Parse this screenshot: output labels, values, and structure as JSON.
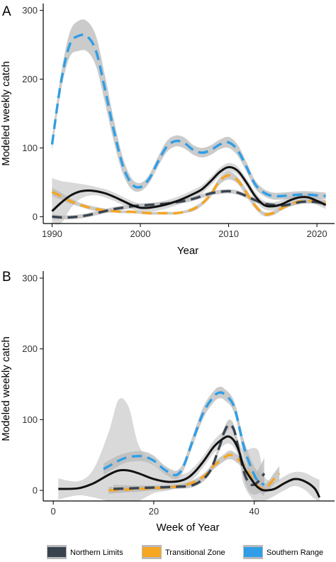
{
  "colors": {
    "Northern Limits": "#39434f",
    "Transitional Zone": "#f5a623",
    "Southern Range": "#2f9ee6",
    "overall": "#111111",
    "ribbon": "#b9b9b9"
  },
  "legend": {
    "placement": "bottom",
    "items": [
      {
        "label": "Northern Limits",
        "color": "#39434f"
      },
      {
        "label": "Transitional Zone",
        "color": "#f5a623"
      },
      {
        "label": "Southern Range",
        "color": "#2f9ee6"
      }
    ]
  },
  "chart_data": [
    {
      "panel": "A",
      "type": "line",
      "xlabel": "Year",
      "ylabel": "Modeled weekly catch",
      "xlim": [
        1989,
        2022
      ],
      "ylim": [
        -10,
        310
      ],
      "xticks": [
        1990,
        2000,
        2010,
        2020
      ],
      "yticks": [
        0,
        100,
        200,
        300
      ],
      "series": [
        {
          "name": "Southern Range",
          "style": "dashed",
          "points": [
            [
              1990,
              105
            ],
            [
              1991,
              195
            ],
            [
              1992,
              250
            ],
            [
              1993,
              263
            ],
            [
              1994,
              262
            ],
            [
              1995,
              240
            ],
            [
              1996,
              185
            ],
            [
              1997,
              125
            ],
            [
              1998,
              75
            ],
            [
              1999,
              48
            ],
            [
              2000,
              43
            ],
            [
              2001,
              55
            ],
            [
              2002,
              80
            ],
            [
              2003,
              102
            ],
            [
              2004,
              110
            ],
            [
              2005,
              107
            ],
            [
              2006,
              97
            ],
            [
              2007,
              93
            ],
            [
              2008,
              97
            ],
            [
              2009,
              105
            ],
            [
              2010,
              108
            ],
            [
              2011,
              97
            ],
            [
              2012,
              73
            ],
            [
              2013,
              47
            ],
            [
              2014,
              35
            ],
            [
              2015,
              30
            ],
            [
              2016,
              30
            ],
            [
              2017,
              31
            ],
            [
              2018,
              32
            ],
            [
              2019,
              32
            ],
            [
              2020,
              31
            ],
            [
              2021,
              30
            ]
          ],
          "band": [
            10,
            12,
            18,
            22,
            22,
            22,
            20,
            16,
            12,
            8,
            6,
            6,
            7,
            8,
            8,
            8,
            7,
            7,
            7,
            7,
            8,
            8,
            7,
            6,
            5,
            5,
            5,
            5,
            5,
            5,
            5,
            5
          ]
        },
        {
          "name": "Transitional Zone",
          "style": "dashed",
          "points": [
            [
              1990,
              36
            ],
            [
              1991,
              30
            ],
            [
              1992,
              23
            ],
            [
              1993,
              18
            ],
            [
              1994,
              14
            ],
            [
              1995,
              11
            ],
            [
              1996,
              9
            ],
            [
              1997,
              8
            ],
            [
              1998,
              7
            ],
            [
              1999,
              7
            ],
            [
              2000,
              6
            ],
            [
              2001,
              5
            ],
            [
              2002,
              5
            ],
            [
              2003,
              5
            ],
            [
              2004,
              5
            ],
            [
              2005,
              7
            ],
            [
              2006,
              11
            ],
            [
              2007,
              19
            ],
            [
              2008,
              33
            ],
            [
              2009,
              52
            ],
            [
              2010,
              60
            ],
            [
              2011,
              53
            ],
            [
              2012,
              35
            ],
            [
              2013,
              16
            ],
            [
              2014,
              4
            ],
            [
              2015,
              5
            ],
            [
              2016,
              12
            ],
            [
              2017,
              18
            ],
            [
              2018,
              22
            ],
            [
              2019,
              23
            ],
            [
              2020,
              22
            ],
            [
              2021,
              20
            ]
          ],
          "band": [
            6,
            5,
            4,
            3,
            3,
            3,
            3,
            2,
            2,
            2,
            2,
            2,
            2,
            2,
            2,
            2,
            3,
            3,
            4,
            5,
            6,
            5,
            5,
            4,
            3,
            3,
            3,
            3,
            3,
            3,
            3,
            4
          ]
        },
        {
          "name": "Northern Limits",
          "style": "dashed",
          "points": [
            [
              1990,
              0
            ],
            [
              1991,
              -1
            ],
            [
              1992,
              -1
            ],
            [
              1993,
              0
            ],
            [
              1994,
              2
            ],
            [
              1995,
              5
            ],
            [
              1996,
              8
            ],
            [
              1997,
              11
            ],
            [
              1998,
              13
            ],
            [
              1999,
              15
            ],
            [
              2000,
              16
            ],
            [
              2001,
              17
            ],
            [
              2002,
              18
            ],
            [
              2003,
              19
            ],
            [
              2004,
              21
            ],
            [
              2005,
              23
            ],
            [
              2006,
              26
            ],
            [
              2007,
              30
            ],
            [
              2008,
              34
            ],
            [
              2009,
              36
            ],
            [
              2010,
              37
            ],
            [
              2011,
              35
            ],
            [
              2012,
              30
            ],
            [
              2013,
              24
            ],
            [
              2014,
              19
            ],
            [
              2015,
              17
            ],
            [
              2016,
              16
            ],
            [
              2017,
              18
            ],
            [
              2018,
              21
            ],
            [
              2019,
              22
            ],
            [
              2020,
              21
            ],
            [
              2021,
              19
            ]
          ],
          "band": [
            4,
            3,
            3,
            3,
            3,
            3,
            3,
            3,
            3,
            3,
            3,
            3,
            3,
            3,
            3,
            3,
            3,
            3,
            3,
            3,
            3,
            3,
            3,
            3,
            3,
            3,
            3,
            3,
            3,
            3,
            3,
            4
          ]
        },
        {
          "name": "",
          "style": "solid",
          "points": [
            [
              1990,
              8
            ],
            [
              1991,
              20
            ],
            [
              1992,
              30
            ],
            [
              1993,
              36
            ],
            [
              1994,
              38
            ],
            [
              1995,
              37
            ],
            [
              1996,
              34
            ],
            [
              1997,
              29
            ],
            [
              1998,
              23
            ],
            [
              1999,
              17
            ],
            [
              2000,
              13
            ],
            [
              2001,
              13
            ],
            [
              2002,
              15
            ],
            [
              2003,
              18
            ],
            [
              2004,
              22
            ],
            [
              2005,
              27
            ],
            [
              2006,
              33
            ],
            [
              2007,
              40
            ],
            [
              2008,
              52
            ],
            [
              2009,
              65
            ],
            [
              2010,
              72
            ],
            [
              2011,
              67
            ],
            [
              2012,
              50
            ],
            [
              2013,
              30
            ],
            [
              2014,
              17
            ],
            [
              2015,
              15
            ],
            [
              2016,
              18
            ],
            [
              2017,
              24
            ],
            [
              2018,
              28
            ],
            [
              2019,
              28
            ],
            [
              2020,
              23
            ],
            [
              2021,
              17
            ]
          ],
          "band": [
            48,
            32,
            20,
            12,
            8,
            6,
            6,
            6,
            6,
            6,
            6,
            6,
            6,
            6,
            6,
            6,
            6,
            6,
            6,
            6,
            6,
            6,
            6,
            6,
            6,
            6,
            6,
            6,
            6,
            6,
            6,
            6
          ]
        }
      ]
    },
    {
      "panel": "B",
      "type": "line",
      "xlabel": "Week of Year",
      "ylabel": "Modeled weekly catch",
      "xlim": [
        -2,
        56
      ],
      "ylim": [
        -15,
        310
      ],
      "xticks": [
        0,
        20,
        40
      ],
      "yticks": [
        0,
        100,
        200,
        300
      ],
      "series": [
        {
          "name": "Southern Range",
          "style": "dashed",
          "points": [
            [
              10,
              30
            ],
            [
              12,
              38
            ],
            [
              14,
              45
            ],
            [
              16,
              48
            ],
            [
              18,
              48
            ],
            [
              20,
              42
            ],
            [
              22,
              30
            ],
            [
              24,
              22
            ],
            [
              25,
              24
            ],
            [
              26,
              35
            ],
            [
              28,
              75
            ],
            [
              30,
              112
            ],
            [
              32,
              133
            ],
            [
              33,
              138
            ],
            [
              34,
              136
            ],
            [
              36,
              118
            ],
            [
              38,
              60
            ],
            [
              40,
              22
            ],
            [
              41,
              12
            ],
            [
              42,
              8
            ]
          ],
          "band": [
            8,
            8,
            7,
            7,
            7,
            7,
            6,
            6,
            6,
            6,
            7,
            8,
            8,
            8,
            8,
            8,
            10,
            12,
            14,
            16
          ]
        },
        {
          "name": "Transitional Zone",
          "style": "dashed",
          "points": [
            [
              11,
              0
            ],
            [
              14,
              1
            ],
            [
              17,
              2
            ],
            [
              20,
              3
            ],
            [
              24,
              5
            ],
            [
              27,
              9
            ],
            [
              30,
              20
            ],
            [
              32,
              35
            ],
            [
              34,
              46
            ],
            [
              35,
              50
            ],
            [
              36,
              48
            ],
            [
              38,
              35
            ],
            [
              40,
              12
            ],
            [
              41,
              4
            ],
            [
              42,
              2
            ],
            [
              43,
              8
            ],
            [
              44,
              17
            ],
            [
              45,
              24
            ]
          ],
          "band": [
            5,
            4,
            4,
            3,
            3,
            3,
            4,
            5,
            5,
            6,
            6,
            6,
            6,
            6,
            6,
            7,
            8,
            10
          ]
        },
        {
          "name": "Northern Limits",
          "style": "dashed",
          "points": [
            [
              12,
              2
            ],
            [
              16,
              3
            ],
            [
              20,
              4
            ],
            [
              24,
              5
            ],
            [
              28,
              8
            ],
            [
              31,
              25
            ],
            [
              33,
              60
            ],
            [
              34,
              82
            ],
            [
              35,
              93
            ],
            [
              36,
              85
            ],
            [
              37,
              55
            ],
            [
              38,
              25
            ],
            [
              39,
              10
            ],
            [
              40,
              8
            ],
            [
              41,
              14
            ],
            [
              42,
              24
            ]
          ],
          "band": [
            6,
            4,
            3,
            3,
            3,
            4,
            5,
            6,
            7,
            7,
            8,
            10,
            12,
            14,
            18,
            22
          ]
        },
        {
          "name": "",
          "style": "solid",
          "points": [
            [
              1,
              2
            ],
            [
              5,
              3
            ],
            [
              8,
              10
            ],
            [
              11,
              22
            ],
            [
              13,
              28
            ],
            [
              15,
              28
            ],
            [
              17,
              24
            ],
            [
              20,
              16
            ],
            [
              23,
              12
            ],
            [
              26,
              15
            ],
            [
              28,
              25
            ],
            [
              30,
              42
            ],
            [
              32,
              62
            ],
            [
              34,
              74
            ],
            [
              35,
              76
            ],
            [
              36,
              70
            ],
            [
              37,
              55
            ],
            [
              38,
              32
            ],
            [
              40,
              10
            ],
            [
              41,
              3
            ],
            [
              42,
              0
            ],
            [
              44,
              2
            ],
            [
              46,
              10
            ],
            [
              48,
              16
            ],
            [
              50,
              13
            ],
            [
              52,
              3
            ],
            [
              53,
              -10
            ]
          ],
          "band": [
            15,
            10,
            20,
            60,
            100,
            90,
            40,
            20,
            12,
            8,
            8,
            8,
            9,
            10,
            10,
            10,
            12,
            25,
            50,
            50,
            20,
            10,
            10,
            10,
            12,
            15,
            25
          ]
        }
      ]
    }
  ]
}
